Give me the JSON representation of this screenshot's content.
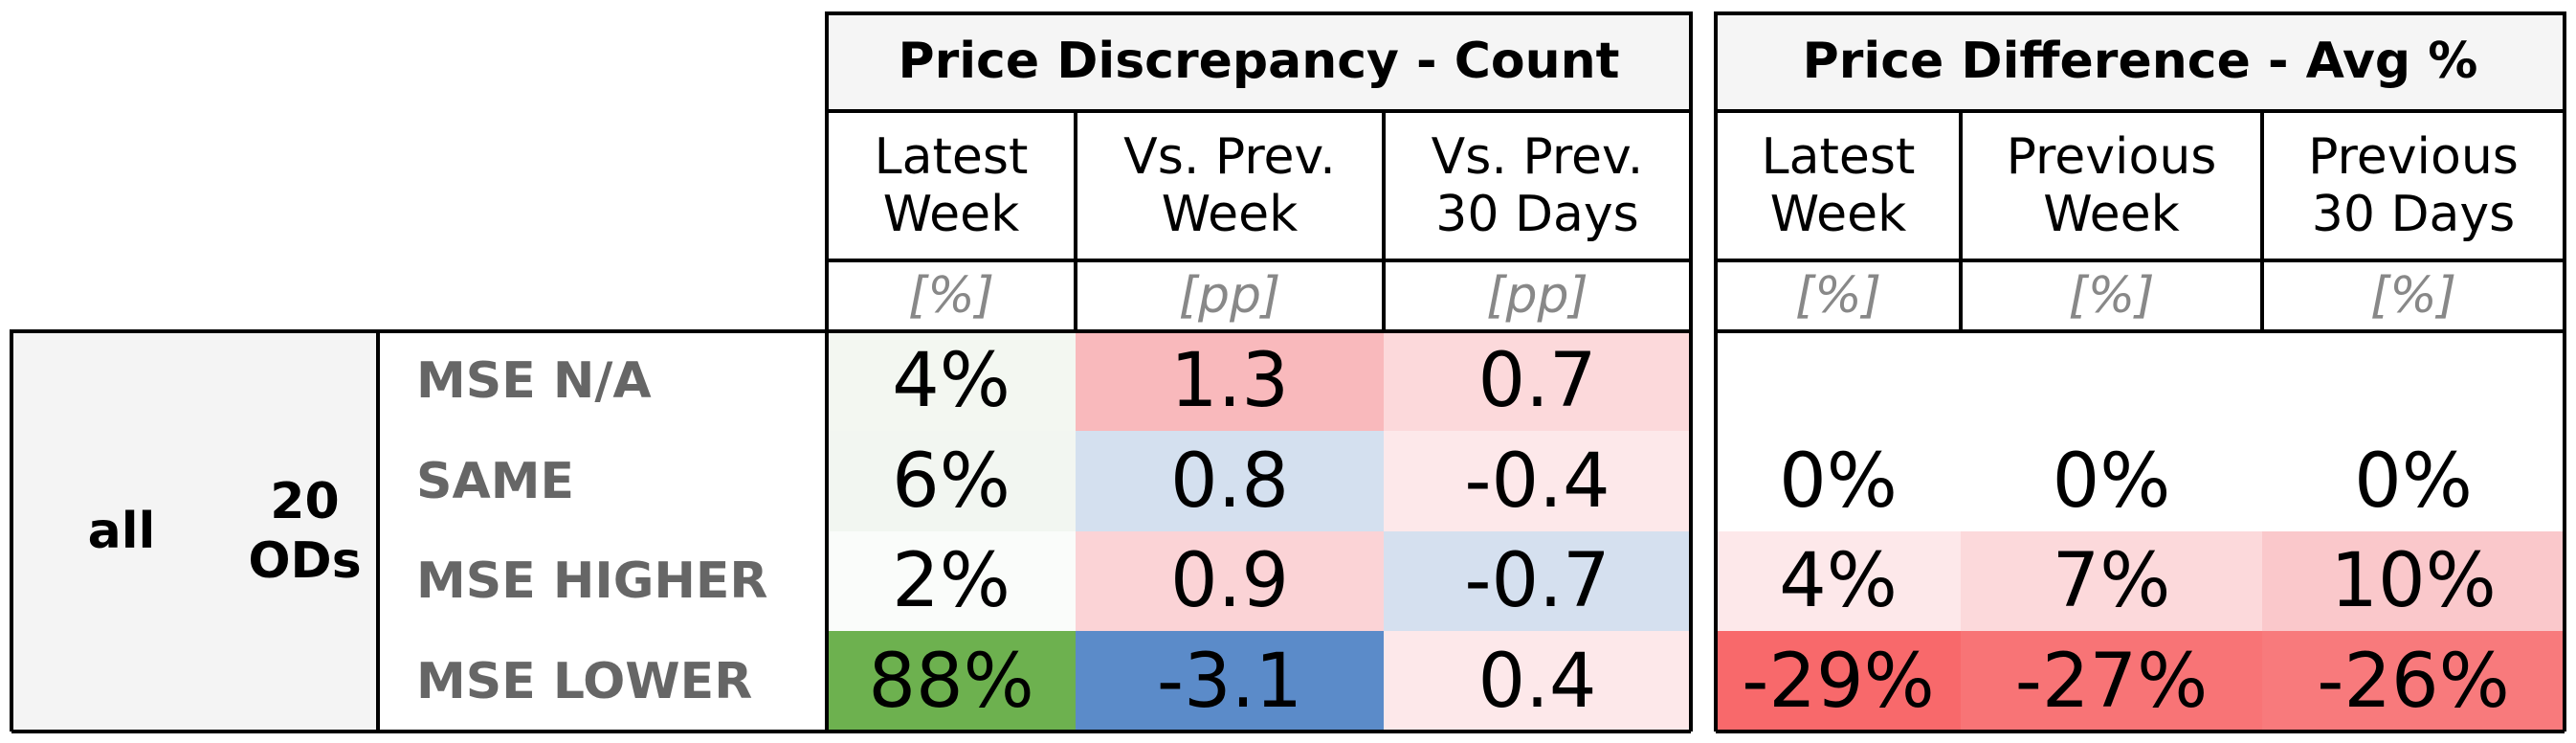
{
  "groups": [
    {
      "title": "Price Discrepancy - Count",
      "columns": [
        {
          "header": "Latest\nWeek",
          "unit": "[%]"
        },
        {
          "header": "Vs. Prev.\nWeek",
          "unit": "[pp]"
        },
        {
          "header": "Vs. Prev.\n30 Days",
          "unit": "[pp]"
        }
      ]
    },
    {
      "title": "Price Difference - Avg %",
      "columns": [
        {
          "header": "Latest\nWeek",
          "unit": "[%]"
        },
        {
          "header": "Previous\nWeek",
          "unit": "[%]"
        },
        {
          "header": "Previous\n30 Days",
          "unit": "[%]"
        }
      ]
    }
  ],
  "segment": {
    "level1": "all",
    "level2": "20\nODs"
  },
  "rows": [
    {
      "label": "MSE N/A",
      "count": [
        {
          "text": "4%",
          "color": "#f3f7f1"
        },
        {
          "text": "1.3",
          "color": "#f9b9bc"
        },
        {
          "text": "0.7",
          "color": "#fcd9db"
        }
      ],
      "avg": [
        {
          "text": "",
          "color": "#ffffff"
        },
        {
          "text": "",
          "color": "#ffffff"
        },
        {
          "text": "",
          "color": "#ffffff"
        }
      ]
    },
    {
      "label": "SAME",
      "count": [
        {
          "text": "6%",
          "color": "#f2f6f1"
        },
        {
          "text": "0.8",
          "color": "#d4e0ef"
        },
        {
          "text": "-0.4",
          "color": "#fde8ea"
        }
      ],
      "avg": [
        {
          "text": "0%",
          "color": "#ffffff"
        },
        {
          "text": "0%",
          "color": "#ffffff"
        },
        {
          "text": "0%",
          "color": "#ffffff"
        }
      ]
    },
    {
      "label": "MSE HIGHER",
      "count": [
        {
          "text": "2%",
          "color": "#fafcfa"
        },
        {
          "text": "0.9",
          "color": "#fbd3d6"
        },
        {
          "text": "-0.7",
          "color": "#d5e0ef"
        }
      ],
      "avg": [
        {
          "text": "4%",
          "color": "#fde8ea"
        },
        {
          "text": "7%",
          "color": "#fcd9db"
        },
        {
          "text": "10%",
          "color": "#fac8cb"
        }
      ]
    },
    {
      "label": "MSE LOWER",
      "count": [
        {
          "text": "88%",
          "color": "#6db14f"
        },
        {
          "text": "-3.1",
          "color": "#5b8bc9"
        },
        {
          "text": "0.4",
          "color": "#fde8ea"
        }
      ],
      "avg": [
        {
          "text": "-29%",
          "color": "#f8696b"
        },
        {
          "text": "-27%",
          "color": "#f87476"
        },
        {
          "text": "-26%",
          "color": "#f87a7c"
        }
      ]
    }
  ]
}
